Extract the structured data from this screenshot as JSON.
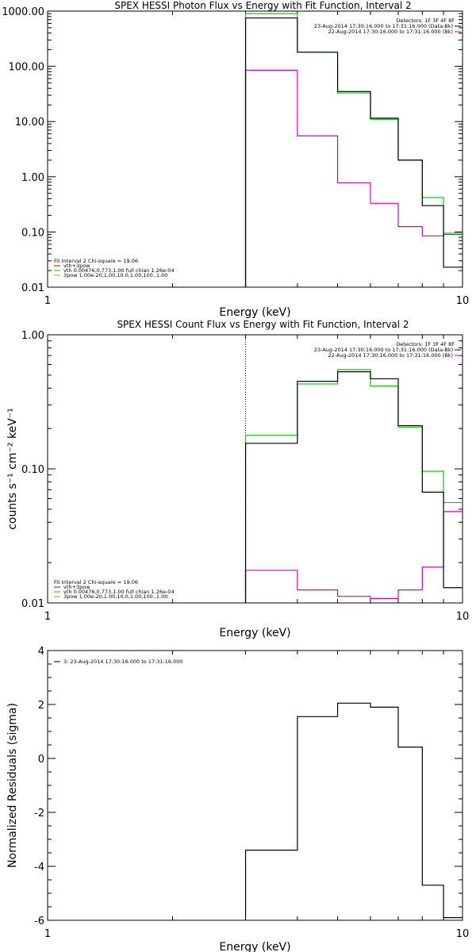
{
  "chart_data": [
    {
      "type": "line",
      "title": "SPEX HESSI Photon Flux vs Energy with Fit Function, Interval 2",
      "xlabel": "Energy (keV)",
      "ylabel": "",
      "xscale": "log",
      "yscale": "log",
      "xlim": [
        1,
        10
      ],
      "ylim": [
        0.01,
        1000
      ],
      "x_ticks": [
        {
          "value": 1,
          "label": "1"
        },
        {
          "value": 10,
          "label": "10"
        }
      ],
      "y_ticks": [
        {
          "value": 0.01,
          "label": "0.01"
        },
        {
          "value": 0.1,
          "label": "0.10"
        },
        {
          "value": 1,
          "label": "1.00"
        },
        {
          "value": 10,
          "label": "10.00"
        },
        {
          "value": 100,
          "label": "100.00"
        },
        {
          "value": 1000,
          "label": "1000.00"
        }
      ],
      "bin_edges": [
        3,
        4,
        5,
        6,
        7,
        8,
        9,
        10
      ],
      "marker_line_x": 3,
      "series": [
        {
          "color": "#000000",
          "values": [
            750,
            180,
            35,
            11.5,
            2.0,
            0.3,
            0.023
          ]
        },
        {
          "color": "#00cc00",
          "values": [
            900,
            180,
            33,
            11,
            2.0,
            0.42,
            0.095
          ]
        },
        {
          "color": "#cc00cc",
          "values": [
            85,
            5.5,
            0.78,
            0.33,
            0.125,
            0.085,
            0.09
          ]
        }
      ],
      "legend_top": {
        "placement": "top-right",
        "heading": "Detectors: 1F 3F 4F 8F",
        "entries": [
          {
            "text": "23-Aug-2014 17:30:16.000 to 17:31:16.000 (Data-Bk)",
            "color": "#000000"
          },
          {
            "text": "22-Aug-2014 17:30:16.000 to 17:31:16.000 (Bk)",
            "color": "#cc00cc"
          }
        ]
      },
      "legend_bottom": {
        "placement": "bottom-left",
        "heading": "Fit Interval 2   Chi-square = 19.06",
        "entries": [
          {
            "text": "vth+3pow",
            "color": "#cc0000"
          },
          {
            "text": "vth 0.00476,0.773,1.00   full chian 1.26e-04",
            "color": "#00cc00"
          },
          {
            "text": "3pow 1.00e-20,1.00,10.0,1.00,100.,1.00",
            "color": "#cc9900"
          }
        ]
      }
    },
    {
      "type": "line",
      "title": "SPEX HESSI Count Flux vs Energy with Fit Function, Interval 2",
      "xlabel": "Energy (keV)",
      "ylabel": "counts s⁻¹ cm⁻² keV⁻¹",
      "xscale": "log",
      "yscale": "log",
      "xlim": [
        1,
        10
      ],
      "ylim": [
        0.01,
        1
      ],
      "x_ticks": [
        {
          "value": 1,
          "label": "1"
        },
        {
          "value": 10,
          "label": "10"
        }
      ],
      "y_ticks": [
        {
          "value": 0.01,
          "label": "0.01"
        },
        {
          "value": 0.1,
          "label": "0.10"
        },
        {
          "value": 1,
          "label": "1.00"
        }
      ],
      "bin_edges": [
        3,
        4,
        5,
        6,
        7,
        8,
        9,
        10
      ],
      "marker_line_x": 3,
      "series": [
        {
          "color": "#000000",
          "values": [
            0.155,
            0.45,
            0.53,
            0.47,
            0.21,
            0.067,
            0.013
          ]
        },
        {
          "color": "#00cc00",
          "values": [
            0.178,
            0.43,
            0.55,
            0.415,
            0.205,
            0.096,
            0.056
          ]
        },
        {
          "color": "#cc00cc",
          "values": [
            0.0175,
            0.0125,
            0.0112,
            0.0108,
            0.0125,
            0.0185,
            0.048
          ]
        }
      ],
      "legend_top": {
        "placement": "top-right",
        "heading": "Detectors: 1F 3F 4F 8F",
        "entries": [
          {
            "text": "23-Aug-2014 17:30:16.000 to 17:31:16.000 (Data-Bk)",
            "color": "#000000"
          },
          {
            "text": "22-Aug-2014 17:30:16.000 to 17:31:16.000 (Bk)",
            "color": "#cc00cc"
          }
        ]
      },
      "legend_bottom": {
        "placement": "bottom-left",
        "heading": "Fit Interval 2   Chi-square = 19.06",
        "entries": [
          {
            "text": "vth+3pow",
            "color": "#cc0000"
          },
          {
            "text": "vth 0.00476,0.773,1.00   full chian 1.26e-04",
            "color": "#00cc00"
          },
          {
            "text": "3pow 1.00e-20,1.00,10.0,1.00,100.,1.00",
            "color": "#cc9900"
          }
        ]
      }
    },
    {
      "type": "line",
      "title": "",
      "xlabel": "Energy (keV)",
      "ylabel": "Normalized Residuals (sigma)",
      "xscale": "log",
      "yscale": "linear",
      "xlim": [
        1,
        10
      ],
      "ylim": [
        -6,
        4
      ],
      "x_ticks": [
        {
          "value": 1,
          "label": "1"
        },
        {
          "value": 10,
          "label": "10"
        }
      ],
      "y_ticks": [
        {
          "value": -6,
          "label": "-6"
        },
        {
          "value": -4,
          "label": "-4"
        },
        {
          "value": -2,
          "label": "-2"
        },
        {
          "value": 0,
          "label": "0"
        },
        {
          "value": 2,
          "label": "2"
        },
        {
          "value": 4,
          "label": "4"
        }
      ],
      "bin_edges": [
        3,
        4,
        5,
        6,
        7,
        8,
        9,
        10
      ],
      "series": [
        {
          "color": "#000000",
          "values": [
            -3.4,
            1.55,
            2.05,
            1.9,
            0.42,
            -4.7,
            -5.9
          ]
        }
      ],
      "legend_top": {
        "placement": "top-left",
        "heading": "",
        "entries": [
          {
            "text": "3: 23-Aug-2014 17:30:16.000 to 17:31:16.000",
            "color": "#000000"
          }
        ]
      }
    }
  ]
}
